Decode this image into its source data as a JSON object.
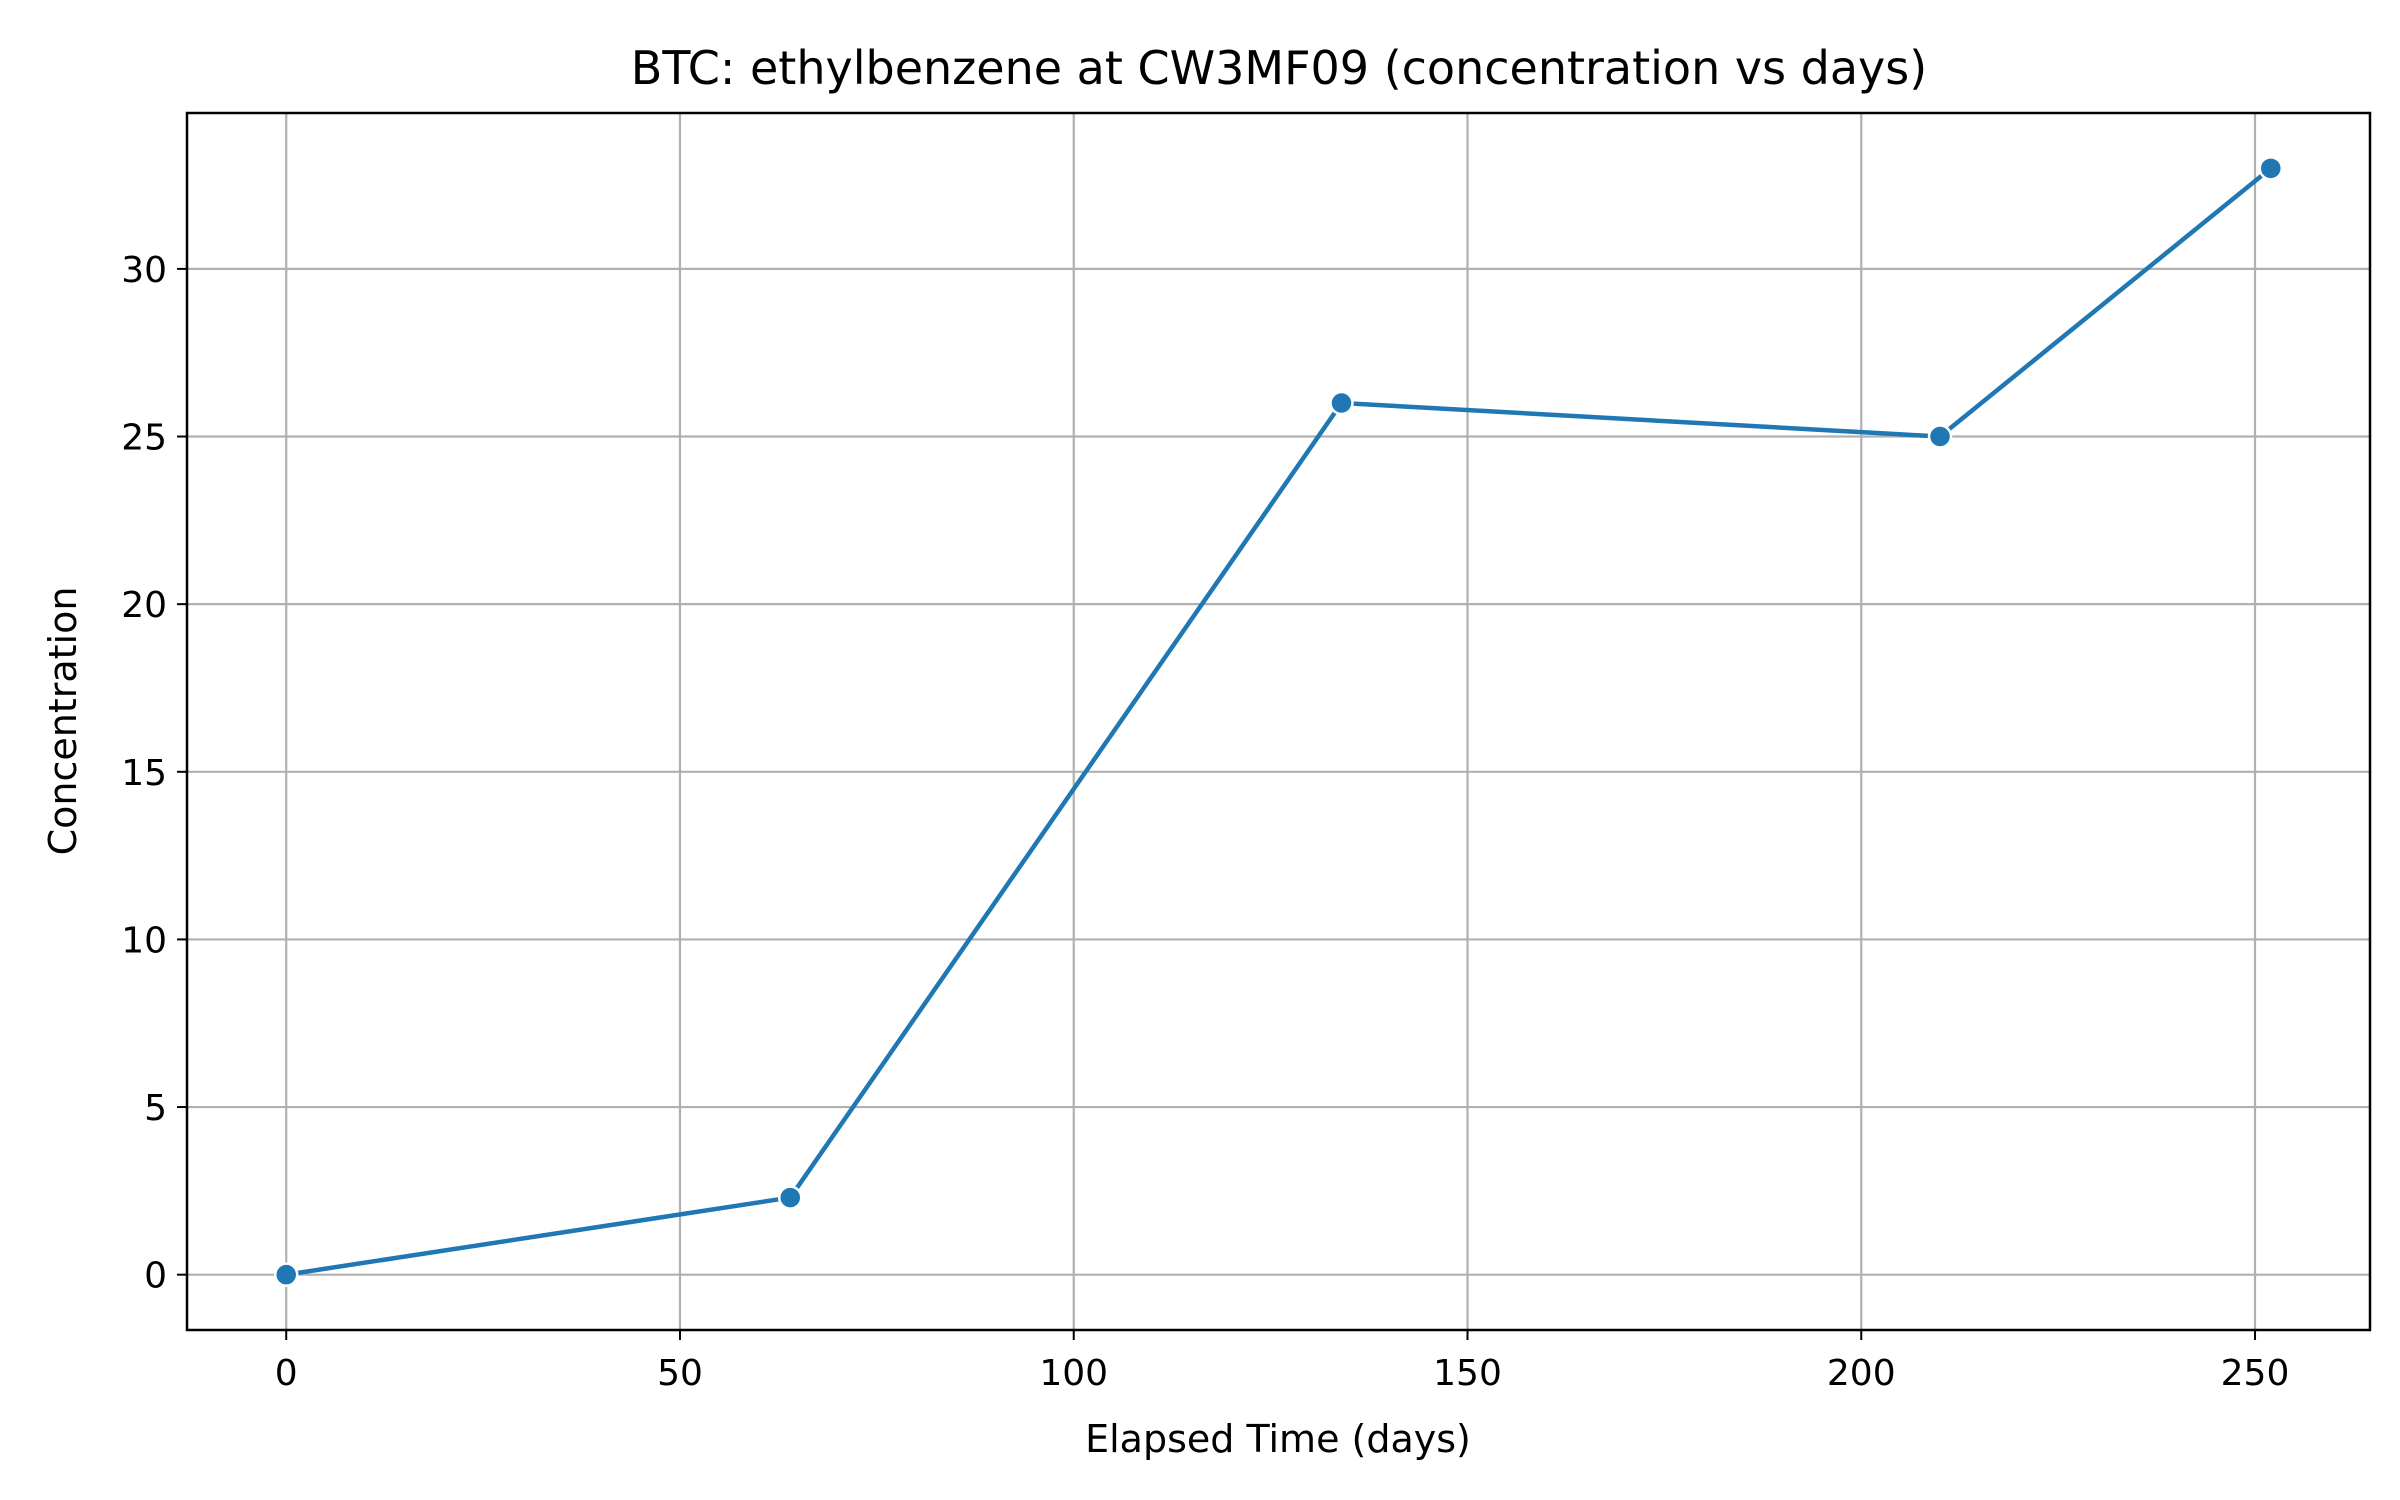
{
  "chart_data": {
    "type": "line",
    "title": "BTC: ethylbenzene at CW3MF09 (concentration vs days)",
    "xlabel": "Elapsed Time (days)",
    "ylabel": "Concentration",
    "x": [
      0,
      64,
      134,
      210,
      252
    ],
    "series": [
      {
        "values": [
          0.0,
          2.3,
          26.0,
          25.0,
          33.0
        ],
        "color": "#1f77b4",
        "marker": "circle"
      }
    ],
    "xlim": [
      -12.6,
      264.6
    ],
    "ylim": [
      -1.65,
      34.65
    ],
    "xticks": [
      0,
      50,
      100,
      150,
      200,
      250
    ],
    "yticks": [
      0,
      5,
      10,
      15,
      20,
      25,
      30
    ],
    "grid": true,
    "legend": false,
    "colors": {
      "line": "#1f77b4",
      "grid": "#b0b0b0",
      "axes": "#000000",
      "marker_edge": "#ffffff"
    }
  }
}
